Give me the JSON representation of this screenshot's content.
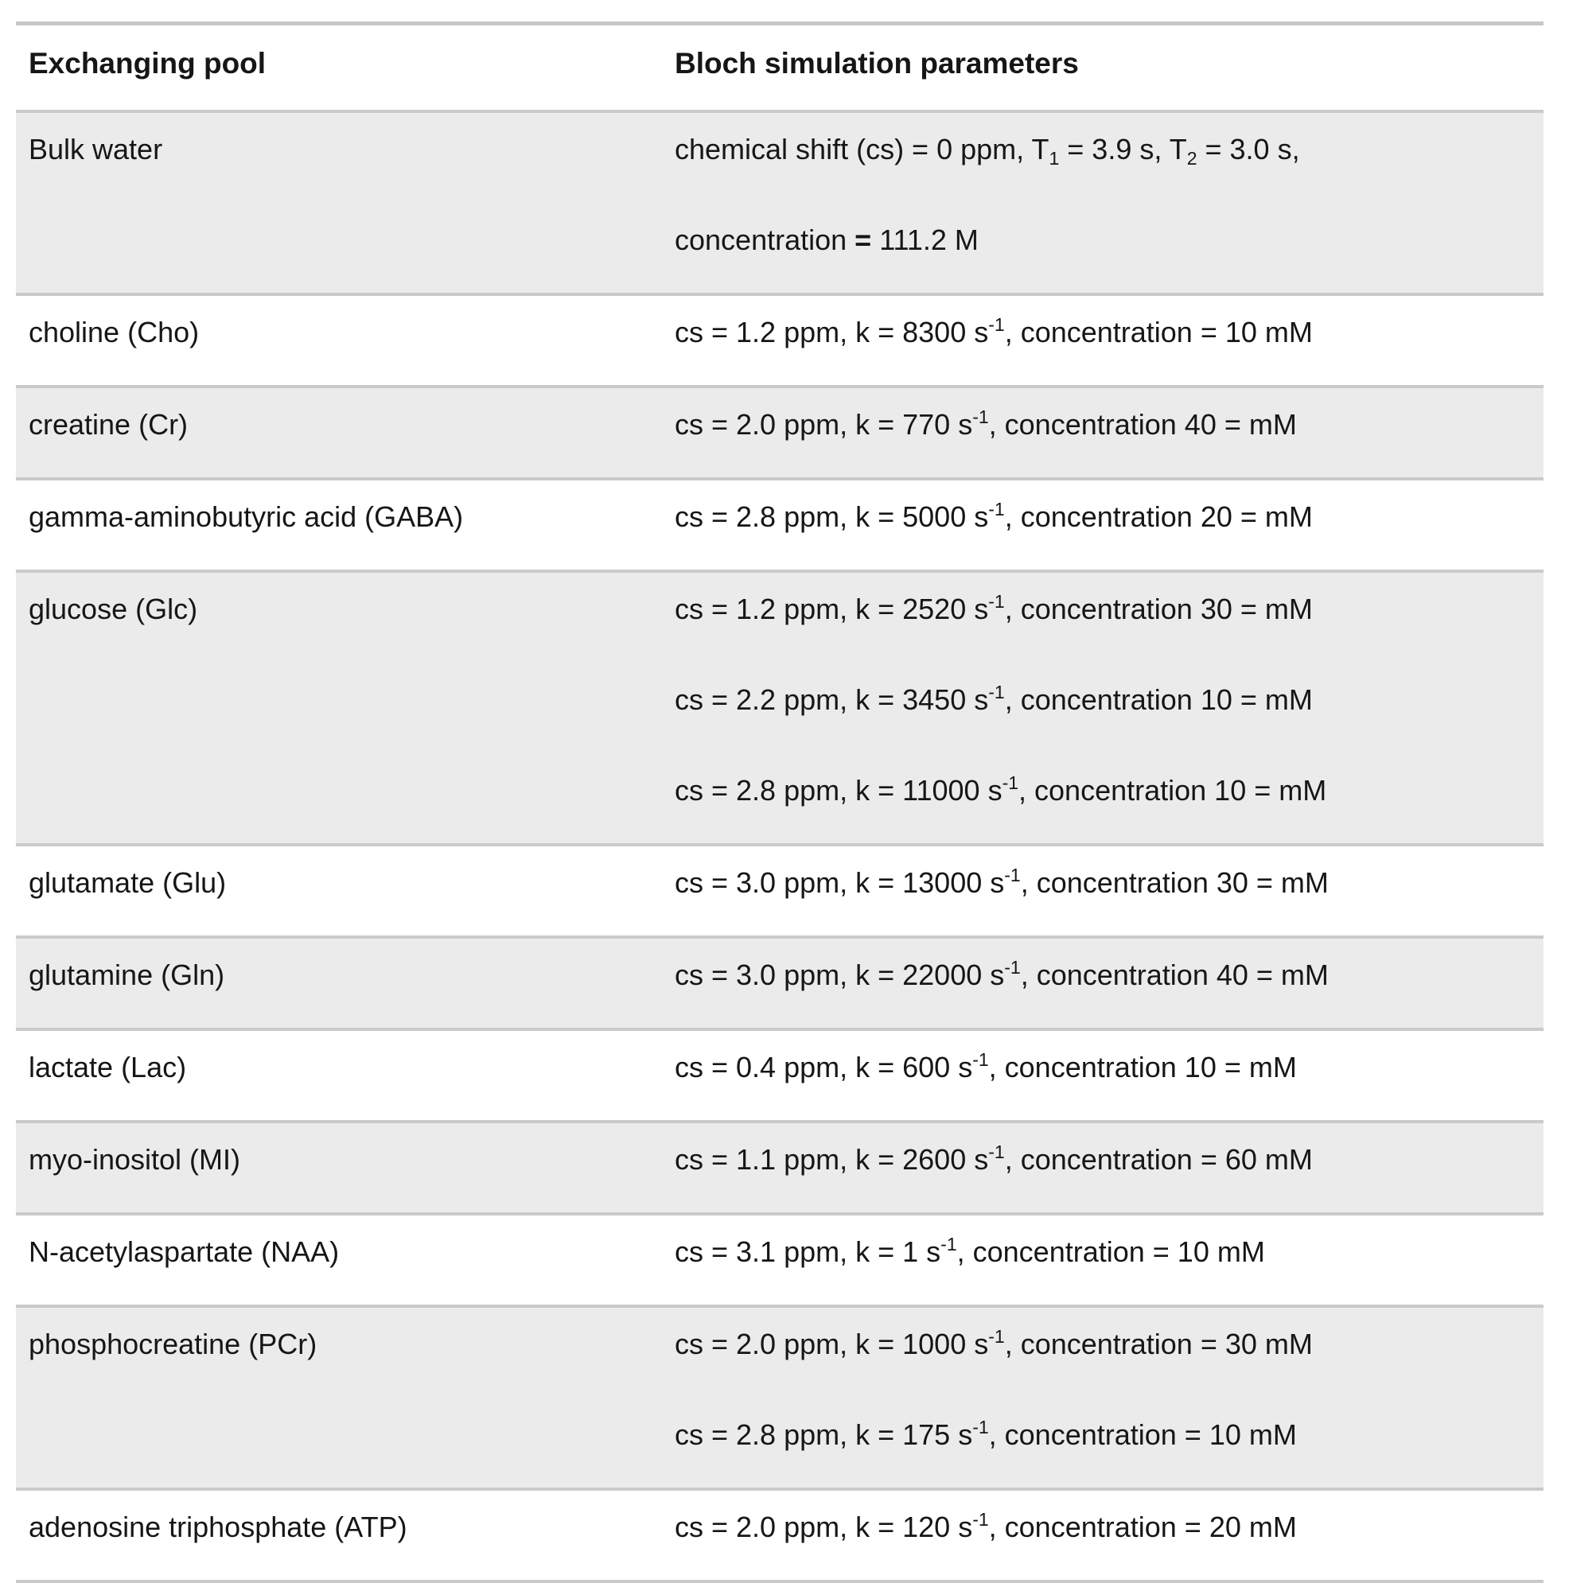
{
  "table": {
    "headers": {
      "pool": "Exchanging pool",
      "params": "Bloch simulation parameters"
    },
    "rows": [
      {
        "pool": "Bulk water",
        "lines": [
          [
            {
              "t": "chemical shift (cs) = 0 ppm, T"
            },
            {
              "sub": "1"
            },
            {
              "t": " = 3.9 s, T"
            },
            {
              "sub": "2"
            },
            {
              "t": " = 3.0 s,"
            }
          ],
          [
            {
              "t": "concentration "
            },
            {
              "b": "="
            },
            {
              "t": " 111.2 M"
            }
          ]
        ]
      },
      {
        "pool": "choline (Cho)",
        "lines": [
          [
            {
              "t": "cs = 1.2 ppm, k = 8300 s"
            },
            {
              "sup": "-1"
            },
            {
              "t": ", concentration = 10 mM"
            }
          ]
        ]
      },
      {
        "pool": "creatine (Cr)",
        "lines": [
          [
            {
              "t": "cs = 2.0 ppm, k = 770 s"
            },
            {
              "sup": "-1"
            },
            {
              "t": ", concentration 40 = mM"
            }
          ]
        ]
      },
      {
        "pool": "gamma-aminobutyric acid (GABA)",
        "lines": [
          [
            {
              "t": "cs = 2.8 ppm, k = 5000 s"
            },
            {
              "sup": "-1"
            },
            {
              "t": ", concentration 20 = mM"
            }
          ]
        ]
      },
      {
        "pool": "glucose (Glc)",
        "lines": [
          [
            {
              "t": "cs = 1.2 ppm, k = 2520 s"
            },
            {
              "sup": "-1"
            },
            {
              "t": ", concentration 30 = mM"
            }
          ],
          [
            {
              "t": "cs = 2.2 ppm, k = 3450 s"
            },
            {
              "sup": "-1"
            },
            {
              "t": ", concentration 10 = mM"
            }
          ],
          [
            {
              "t": "cs = 2.8 ppm, k = 11000 s"
            },
            {
              "sup": "-1"
            },
            {
              "t": ", concentration 10 = mM"
            }
          ]
        ]
      },
      {
        "pool": "glutamate (Glu)",
        "lines": [
          [
            {
              "t": "cs = 3.0 ppm, k = 13000 s"
            },
            {
              "sup": "-1"
            },
            {
              "t": ", concentration 30 = mM"
            }
          ]
        ]
      },
      {
        "pool": "glutamine (Gln)",
        "lines": [
          [
            {
              "t": "cs = 3.0 ppm, k = 22000 s"
            },
            {
              "sup": "-1"
            },
            {
              "t": ", concentration 40 = mM"
            }
          ]
        ]
      },
      {
        "pool": "lactate (Lac)",
        "lines": [
          [
            {
              "t": "cs = 0.4 ppm, k = 600 s"
            },
            {
              "sup": "-1"
            },
            {
              "t": ", concentration 10 = mM"
            }
          ]
        ]
      },
      {
        "pool": "myo-inositol (MI)",
        "lines": [
          [
            {
              "t": "cs = 1.1 ppm, k = 2600 s"
            },
            {
              "sup": "-1"
            },
            {
              "t": ", concentration = 60 mM"
            }
          ]
        ]
      },
      {
        "pool": "N-acetylaspartate (NAA)",
        "lines": [
          [
            {
              "t": "cs = 3.1 ppm, k = 1 s"
            },
            {
              "sup": "-1"
            },
            {
              "t": ", concentration = 10 mM"
            }
          ]
        ]
      },
      {
        "pool": "phosphocreatine (PCr)",
        "lines": [
          [
            {
              "t": "cs = 2.0 ppm, k = 1000 s"
            },
            {
              "sup": "-1"
            },
            {
              "t": ", concentration = 30 mM"
            }
          ],
          [
            {
              "t": "cs = 2.8 ppm, k = 175 s"
            },
            {
              "sup": "-1"
            },
            {
              "t": ", concentration = 10 mM"
            }
          ]
        ]
      },
      {
        "pool": "adenosine triphosphate (ATP)",
        "lines": [
          [
            {
              "t": "cs = 2.0 ppm, k = 120 s"
            },
            {
              "sup": "-1"
            },
            {
              "t": ", concentration = 20 mM"
            }
          ]
        ]
      }
    ]
  }
}
